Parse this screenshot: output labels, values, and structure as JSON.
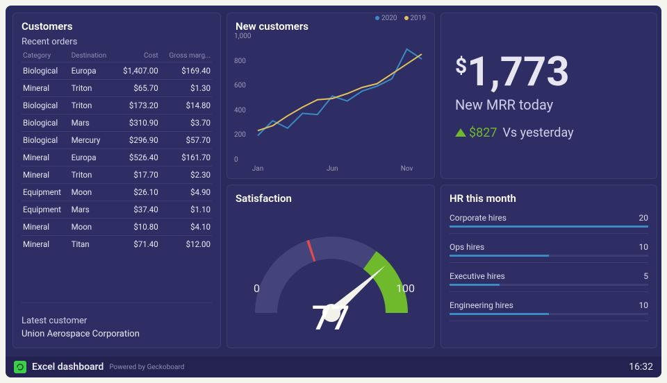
{
  "line_chart": {
    "title": "New customers",
    "type": "line",
    "xticks": [
      "Jan",
      "Jun",
      "Nov"
    ],
    "yticks": [
      0,
      200,
      400,
      600,
      800,
      1000
    ],
    "ylim": [
      0,
      1000
    ],
    "series": [
      {
        "name": "2020",
        "color": "#3b8ac4",
        "y": [
          200,
          320,
          260,
          380,
          370,
          520,
          480,
          560,
          600,
          660,
          900,
          820
        ]
      },
      {
        "name": "2019",
        "color": "#e2c25b",
        "y": [
          240,
          280,
          360,
          430,
          490,
          500,
          540,
          590,
          620,
          700,
          780,
          860
        ]
      }
    ],
    "axis_color": "#3e3d74",
    "label_color": "#9a99b8",
    "label_fontsize": 10
  },
  "mrr": {
    "currency": "$",
    "value": "1,773",
    "label": "New MRR today",
    "delta_value": "$827",
    "delta_suffix": "Vs yesterday",
    "delta_direction": "up",
    "accent_color": "#6fb92c"
  },
  "customers": {
    "title": "Customers",
    "subhead": "Recent orders",
    "columns": [
      "Category",
      "Destination",
      "Cost",
      "Gross marg..."
    ],
    "rows": [
      [
        "Biological",
        "Europa",
        "$1,407.00",
        "$169.40"
      ],
      [
        "Mineral",
        "Triton",
        "$65.70",
        "$1.30"
      ],
      [
        "Biological",
        "Triton",
        "$173.20",
        "$14.80"
      ],
      [
        "Biological",
        "Mars",
        "$310.90",
        "$3.70"
      ],
      [
        "Biological",
        "Mercury",
        "$296.90",
        "$57.70"
      ],
      [
        "Mineral",
        "Europa",
        "$526.40",
        "$161.70"
      ],
      [
        "Mineral",
        "Triton",
        "$17.70",
        "$2.30"
      ],
      [
        "Equipment",
        "Moon",
        "$26.10",
        "$4.90"
      ],
      [
        "Equipment",
        "Mars",
        "$37.40",
        "$1.10"
      ],
      [
        "Mineral",
        "Moon",
        "$10.80",
        "$4.10"
      ],
      [
        "Mineral",
        "Titan",
        "$71.40",
        "$12.00"
      ]
    ],
    "latest_label": "Latest customer",
    "latest_name": "Union Aerospace Corporation"
  },
  "gauge": {
    "title": "Satisfaction",
    "min": 0,
    "max": 100,
    "value": 77,
    "track_color": "#45447a",
    "green_color": "#6fb92c",
    "tick_color": "#e24b4b",
    "needle_color": "#f2f1ea",
    "green_start": 70,
    "green_end": 100,
    "red_tick": 40
  },
  "hr": {
    "title": "HR this month",
    "max": 20,
    "bar_color": "#3b8ac4",
    "items": [
      {
        "label": "Corporate hires",
        "value": 20
      },
      {
        "label": "Ops hires",
        "value": 10
      },
      {
        "label": "Executive hires",
        "value": 5
      },
      {
        "label": "Engineering hires",
        "value": 10
      }
    ]
  },
  "footer": {
    "brand": "Excel dashboard",
    "powered": "Powered by Geckoboard",
    "time": "16:32",
    "logo_color": "#3ecf4a"
  }
}
